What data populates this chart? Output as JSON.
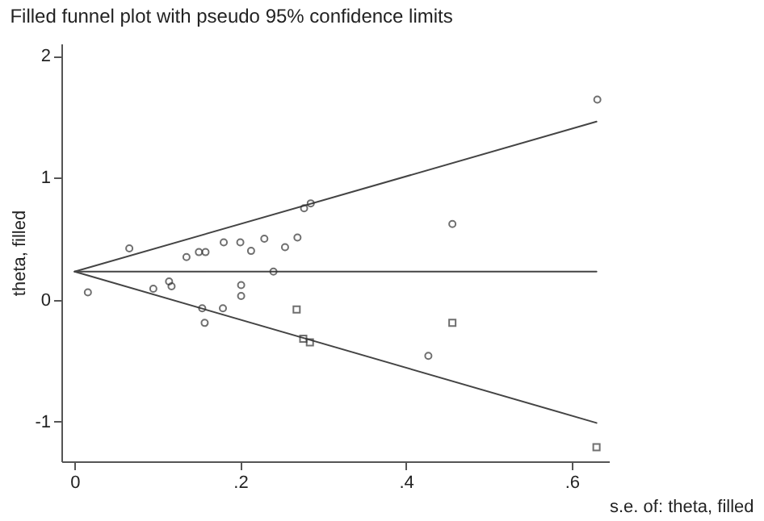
{
  "chart_data": {
    "type": "scatter",
    "title": "Filled funnel plot with pseudo 95% confidence limits",
    "xlabel": "s.e. of: theta, filled",
    "ylabel": "theta, filled",
    "series": [
      {
        "type": "line",
        "color": "#444444",
        "x": [
          0,
          0.63
        ],
        "values": [
          0.23,
          1.46
        ]
      },
      {
        "type": "line",
        "color": "#444444",
        "x": [
          0,
          0.63
        ],
        "values": [
          0.23,
          -1.01
        ]
      },
      {
        "type": "line",
        "color": "#444444",
        "x": [
          0,
          0.63
        ],
        "values": [
          0.23,
          0.23
        ]
      },
      {
        "marker": "circle",
        "color": "#333333",
        "x": [
          0.016,
          0.066,
          0.095,
          0.114,
          0.117,
          0.135,
          0.15,
          0.158,
          0.154,
          0.157,
          0.18,
          0.179,
          0.2,
          0.201,
          0.201,
          0.213,
          0.229,
          0.24,
          0.254,
          0.269,
          0.277,
          0.285,
          0.456,
          0.427,
          0.631
        ],
        "values": [
          0.06,
          0.42,
          0.09,
          0.15,
          0.11,
          0.35,
          0.39,
          0.39,
          -0.07,
          -0.19,
          0.47,
          -0.07,
          0.47,
          0.12,
          0.03,
          0.4,
          0.5,
          0.23,
          0.43,
          0.51,
          0.75,
          0.79,
          0.62,
          -0.46,
          1.64
        ]
      },
      {
        "marker": "square",
        "color": "#333333",
        "x": [
          0.268,
          0.276,
          0.284,
          0.456,
          0.63
        ],
        "values": [
          -0.08,
          -0.32,
          -0.35,
          -0.19,
          -1.21
        ]
      }
    ],
    "xlim": [
      -0.016,
      0.645
    ],
    "ylim": [
      -1.325,
      2.1
    ],
    "xticks": [
      0,
      {
        "value": 0.2,
        "label": ".2"
      },
      {
        "value": 0.4,
        "label": ".4"
      },
      {
        "value": 0.6,
        "label": ".6"
      }
    ],
    "yticks": [
      -1,
      0,
      1,
      2
    ],
    "grid": false
  }
}
